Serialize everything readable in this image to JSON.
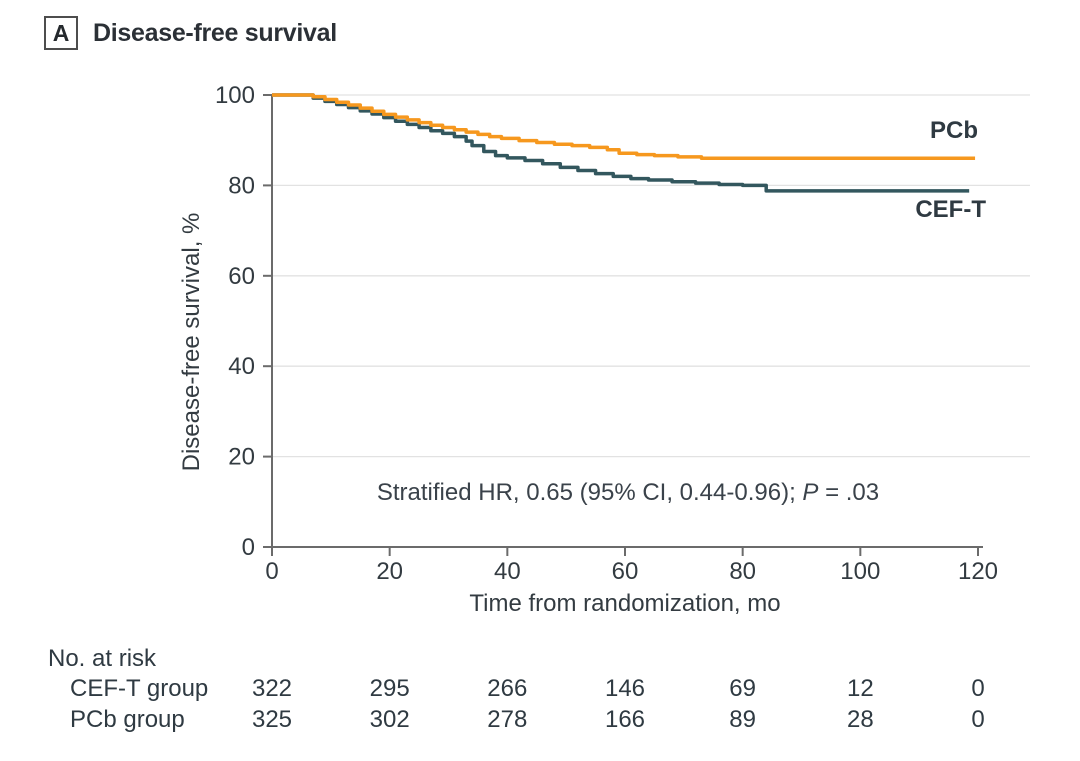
{
  "panel": {
    "letter": "A",
    "title": "Disease-free survival"
  },
  "chart_data": {
    "type": "line",
    "subtype": "kaplan-meier-step",
    "title": "Disease-free survival",
    "xlabel": "Time from randomization, mo",
    "ylabel": "Disease-free survival, %",
    "xlim": [
      0,
      120
    ],
    "ylim": [
      0,
      100
    ],
    "x_ticks": [
      0,
      20,
      40,
      60,
      80,
      100,
      120
    ],
    "y_ticks": [
      0,
      20,
      40,
      60,
      80,
      100
    ],
    "grid": "horizontal",
    "annotation": {
      "text": "Stratified HR, 0.65 (95% CI, 0.44-0.96); ",
      "p_label": "P",
      "p_text": " = .03"
    },
    "series": [
      {
        "name": "CEF-T",
        "color": "#33575E",
        "steps": [
          [
            0,
            100
          ],
          [
            5,
            100
          ],
          [
            7,
            99.3
          ],
          [
            9,
            98.6
          ],
          [
            11,
            97.9
          ],
          [
            13,
            97.2
          ],
          [
            15,
            96.5
          ],
          [
            17,
            95.8
          ],
          [
            19,
            95.0
          ],
          [
            21,
            94.2
          ],
          [
            23,
            93.5
          ],
          [
            25,
            92.8
          ],
          [
            27,
            92.1
          ],
          [
            29,
            91.5
          ],
          [
            31,
            90.8
          ],
          [
            33,
            89.8
          ],
          [
            34,
            88.8
          ],
          [
            36,
            87.5
          ],
          [
            38,
            86.6
          ],
          [
            40,
            86.1
          ],
          [
            43,
            85.5
          ],
          [
            46,
            84.8
          ],
          [
            49,
            84.0
          ],
          [
            52,
            83.3
          ],
          [
            55,
            82.6
          ],
          [
            58,
            82.0
          ],
          [
            61,
            81.5
          ],
          [
            64,
            81.2
          ],
          [
            68,
            80.8
          ],
          [
            72,
            80.5
          ],
          [
            76,
            80.2
          ],
          [
            80,
            80.0
          ],
          [
            84,
            78.8
          ],
          [
            118.5,
            78.8
          ]
        ]
      },
      {
        "name": "PCb",
        "color": "#F6981E",
        "steps": [
          [
            0,
            100
          ],
          [
            5,
            100
          ],
          [
            7,
            99.6
          ],
          [
            9,
            99.0
          ],
          [
            11,
            98.4
          ],
          [
            13,
            97.8
          ],
          [
            15,
            97.1
          ],
          [
            17,
            96.4
          ],
          [
            19,
            95.7
          ],
          [
            21,
            95.1
          ],
          [
            23,
            94.5
          ],
          [
            25,
            93.9
          ],
          [
            27,
            93.3
          ],
          [
            29,
            92.8
          ],
          [
            31,
            92.3
          ],
          [
            33,
            91.8
          ],
          [
            35,
            91.3
          ],
          [
            37,
            90.8
          ],
          [
            39,
            90.4
          ],
          [
            42,
            89.9
          ],
          [
            45,
            89.5
          ],
          [
            48,
            89.1
          ],
          [
            51,
            88.8
          ],
          [
            54,
            88.4
          ],
          [
            57,
            87.9
          ],
          [
            59,
            87.1
          ],
          [
            62,
            86.8
          ],
          [
            65,
            86.6
          ],
          [
            69,
            86.3
          ],
          [
            73,
            86.0
          ],
          [
            119.5,
            86.0
          ]
        ]
      }
    ],
    "risk_table": {
      "title": "No. at risk",
      "times": [
        0,
        20,
        40,
        60,
        80,
        100,
        120
      ],
      "rows": [
        {
          "label": "CEF-T group",
          "values": [
            322,
            295,
            266,
            146,
            69,
            12,
            0
          ]
        },
        {
          "label": "PCb group",
          "values": [
            325,
            302,
            278,
            166,
            89,
            28,
            0
          ]
        }
      ]
    },
    "colors": {
      "pcb": "#F6981E",
      "ceft": "#33575E",
      "grid": "#e2e2e2",
      "axis": "#6b6b6b",
      "text": "#333b41"
    }
  }
}
